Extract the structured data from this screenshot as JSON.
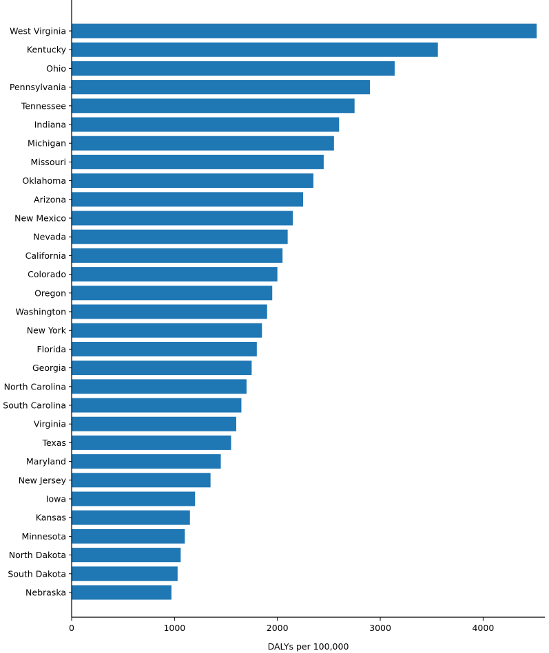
{
  "chart_data": {
    "type": "bar",
    "orientation": "horizontal",
    "title": "",
    "xlabel": "DALYs per 100,000",
    "ylabel": "",
    "categories": [
      "West Virginia",
      "Kentucky",
      "Ohio",
      "Pennsylvania",
      "Tennessee",
      "Indiana",
      "Michigan",
      "Missouri",
      "Oklahoma",
      "Arizona",
      "New Mexico",
      "Nevada",
      "California",
      "Colorado",
      "Oregon",
      "Washington",
      "New York",
      "Florida",
      "Georgia",
      "North Carolina",
      "South Carolina",
      "Virginia",
      "Texas",
      "Maryland",
      "New Jersey",
      "Iowa",
      "Kansas",
      "Minnesota",
      "North Dakota",
      "South Dakota",
      "Nebraska"
    ],
    "values": [
      4520,
      3560,
      3140,
      2900,
      2750,
      2600,
      2550,
      2450,
      2350,
      2250,
      2150,
      2100,
      2050,
      2000,
      1950,
      1900,
      1850,
      1800,
      1750,
      1700,
      1650,
      1600,
      1550,
      1450,
      1350,
      1200,
      1150,
      1100,
      1060,
      1030,
      970
    ],
    "xlim": [
      0,
      4600
    ],
    "xticks": [
      0,
      1000,
      2000,
      3000,
      4000
    ],
    "xtick_labels": [
      "0",
      "1000",
      "2000",
      "3000",
      "4000"
    ],
    "grid": false,
    "legend": "none",
    "colors": {
      "bar": "#1f77b4",
      "axis": "#000000"
    }
  }
}
